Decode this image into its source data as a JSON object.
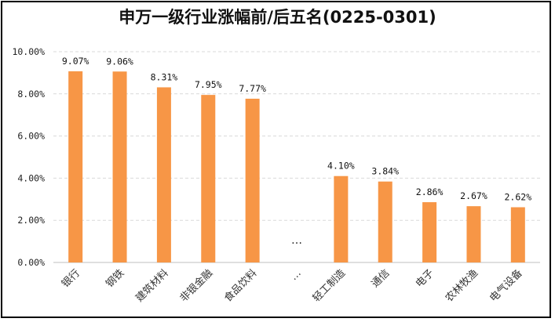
{
  "chart_data": {
    "type": "bar",
    "title": "申万一级行业涨幅前/后五名(0225-0301)",
    "xlabel": "",
    "ylabel": "",
    "categories": [
      "银行",
      "钢铁",
      "建筑材料",
      "非银金融",
      "食品饮料",
      "…",
      "轻工制造",
      "通信",
      "电子",
      "农林牧渔",
      "电气设备"
    ],
    "values": [
      9.07,
      9.06,
      8.31,
      7.95,
      7.77,
      null,
      4.1,
      3.84,
      2.86,
      2.67,
      2.62
    ],
    "data_labels": [
      "9.07%",
      "9.06%",
      "8.31%",
      "7.95%",
      "7.77%",
      "",
      "4.10%",
      "3.84%",
      "2.86%",
      "2.67%",
      "2.62%"
    ],
    "gap_marker": "…",
    "y_ticks": [
      "0.00%",
      "2.00%",
      "4.00%",
      "6.00%",
      "8.00%",
      "10.00%"
    ],
    "y_tick_values": [
      0,
      2,
      4,
      6,
      8,
      10
    ],
    "ylim": [
      0,
      10
    ],
    "grid": true,
    "legend": "none",
    "bar_color": "#f79646",
    "grid_color": "#d9d9d9"
  }
}
